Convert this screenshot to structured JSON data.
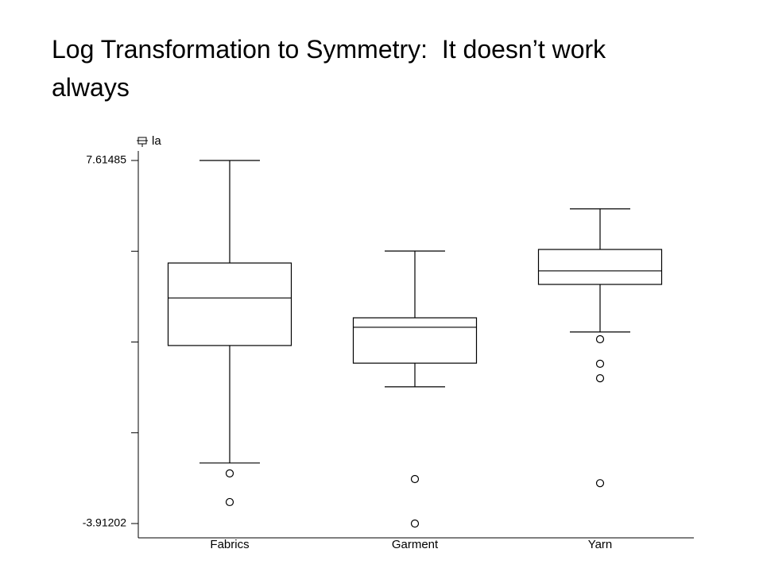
{
  "chart_data": {
    "type": "box",
    "title": "Log Transformation to Symmetry:  It doesn’t work always",
    "y_label": "la",
    "categories": [
      "Fabrics",
      "Garment",
      "Yarn"
    ],
    "boxes": [
      {
        "whisker_low": -1.99,
        "q1": 1.74,
        "median": 3.25,
        "q3": 4.36,
        "whisker_high": 7.61485,
        "outliers": [
          -2.32,
          -3.23
        ]
      },
      {
        "whisker_low": 0.43,
        "q1": 1.18,
        "median": 2.32,
        "q3": 2.62,
        "whisker_high": 4.74,
        "outliers": [
          -2.5,
          -3.91202
        ]
      },
      {
        "whisker_low": 2.17,
        "q1": 3.68,
        "median": 4.11,
        "q3": 4.79,
        "whisker_high": 6.08,
        "outliers": [
          1.94,
          1.16,
          0.7,
          -2.63
        ]
      }
    ],
    "color": "#000000",
    "ylim": [
      -3.91202,
      7.61485
    ],
    "yticks": [
      {
        "value": -3.91202,
        "label": "-3.91202"
      },
      {
        "value": 7.61485,
        "label": "7.61485"
      }
    ],
    "minor_yticks": [
      -1.0303,
      1.85142,
      4.73313
    ]
  }
}
